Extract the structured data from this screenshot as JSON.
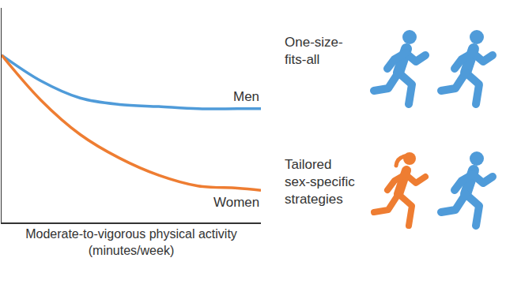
{
  "chart_data": {
    "type": "line",
    "xlabel": "Moderate-to-vigorous physical activity\n(minutes/week)",
    "x": [
      0,
      50,
      100,
      150,
      200,
      250,
      300,
      330
    ],
    "series": [
      {
        "name": "Men",
        "color": "#4f9bd9",
        "values": [
          78,
          66,
          58,
          55,
          54,
          53,
          53,
          53
        ]
      },
      {
        "name": "Women",
        "color": "#ee7d32",
        "values": [
          78,
          57,
          41,
          30,
          22,
          17,
          16,
          15
        ]
      }
    ],
    "xlim": [
      0,
      330
    ],
    "ylim": [
      0,
      100
    ],
    "tick_labels": false,
    "grid": false,
    "panels": [
      {
        "text": "One-size-\nfits-all",
        "runners": [
          "Men",
          "Men"
        ]
      },
      {
        "text": "Tailored\nsex-specific\nstrategies",
        "runners": [
          "Women",
          "Men"
        ]
      }
    ]
  }
}
